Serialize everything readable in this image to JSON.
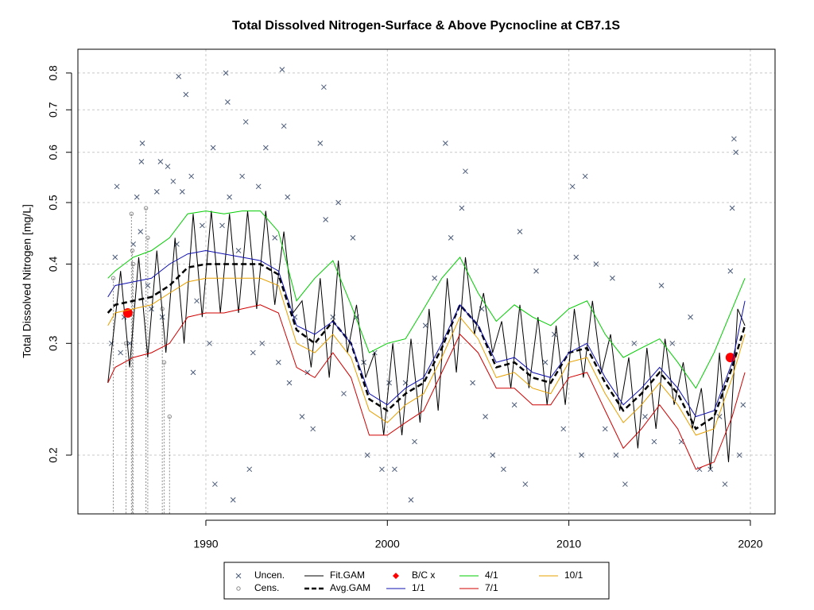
{
  "chart_data": {
    "type": "line",
    "title": "Total Dissolved Nitrogen-Surface & Above Pycnocline at CB7.1S",
    "y_label": "Total Dissolved Nitrogen [mg/L]",
    "log_y": true,
    "grid": true,
    "xlim": [
      1982.95,
      2021.36
    ],
    "ylim": [
      0.1616,
      0.872
    ],
    "xticks": [
      1990,
      2000,
      2010,
      2020
    ],
    "yticks": [
      0.2,
      0.3,
      0.4,
      0.5,
      0.6,
      0.7,
      0.8
    ],
    "legend": "bottom",
    "x": [
      1984.6,
      1985,
      1986,
      1987,
      1988,
      1989,
      1990,
      1991,
      1992,
      1993,
      1994,
      1995,
      1996,
      1997,
      1998,
      1999,
      2000,
      2001,
      2002,
      2003,
      2004,
      2005,
      2006,
      2007,
      2008,
      2009,
      2010,
      2011,
      2012,
      2013,
      2014,
      2015,
      2016,
      2017,
      2018,
      2019,
      2019.7
    ],
    "series": [
      {
        "name": "Uncen.",
        "color": "#4a5a78",
        "marker": "x",
        "x": [
          1984.8,
          1985.0,
          1985.1,
          1985.3,
          1985.5,
          1985.8,
          1986.0,
          1986.2,
          1986.4,
          1986.5,
          1986.45,
          1986.8,
          1987.0,
          1987.3,
          1987.5,
          1987.6,
          1987.9,
          1988.2,
          1988.4,
          1988.5,
          1988.7,
          1988.9,
          1989.2,
          1989.3,
          1989.5,
          1989.8,
          1990.2,
          1990.4,
          1990.5,
          1990.9,
          1991.1,
          1991.2,
          1991.3,
          1991.5,
          1991.8,
          1992.0,
          1992.2,
          1992.4,
          1992.6,
          1992.9,
          1993.1,
          1993.3,
          1993.8,
          1994.0,
          1994.2,
          1994.3,
          1994.5,
          1994.6,
          1994.9,
          1995.3,
          1995.6,
          1995.9,
          1996.3,
          1996.5,
          1996.6,
          1997.0,
          1997.3,
          1997.6,
          1998.1,
          1998.3,
          1998.7,
          1998.9,
          1999.3,
          1999.7,
          2000.1,
          2000.4,
          2001.0,
          2001.3,
          2001.5,
          2002.1,
          2002.6,
          2003.2,
          2003.5,
          2004.1,
          2004.3,
          2004.7,
          2005.2,
          2005.4,
          2005.8,
          2006.4,
          2007.0,
          2007.3,
          2007.6,
          2008.2,
          2008.7,
          2009.2,
          2009.7,
          2010.2,
          2010.4,
          2010.7,
          2010.9,
          2011.5,
          2012.0,
          2012.4,
          2012.6,
          2013.1,
          2013.6,
          2014.2,
          2014.7,
          2015.1,
          2015.7,
          2016.2,
          2016.7,
          2017.2,
          2017.8,
          2018.3,
          2018.6,
          2018.9,
          2019.1,
          2019.2,
          2019.0,
          2019.4,
          2019.6
        ],
        "values": [
          0.3,
          0.41,
          0.53,
          0.29,
          0.33,
          0.3,
          0.43,
          0.51,
          0.45,
          0.62,
          0.58,
          0.37,
          0.34,
          0.52,
          0.58,
          0.33,
          0.57,
          0.54,
          0.43,
          0.79,
          0.52,
          0.74,
          0.55,
          0.27,
          0.35,
          0.46,
          0.3,
          0.61,
          0.18,
          0.46,
          0.8,
          0.72,
          0.51,
          0.17,
          0.42,
          0.55,
          0.67,
          0.19,
          0.29,
          0.53,
          0.3,
          0.61,
          0.44,
          0.28,
          0.81,
          0.66,
          0.51,
          0.26,
          0.33,
          0.23,
          0.27,
          0.22,
          0.62,
          0.76,
          0.47,
          0.33,
          0.5,
          0.25,
          0.44,
          0.33,
          0.28,
          0.2,
          0.29,
          0.19,
          0.26,
          0.19,
          0.26,
          0.17,
          0.21,
          0.32,
          0.38,
          0.62,
          0.44,
          0.49,
          0.56,
          0.26,
          0.34,
          0.23,
          0.2,
          0.19,
          0.24,
          0.45,
          0.18,
          0.39,
          0.28,
          0.31,
          0.22,
          0.53,
          0.41,
          0.2,
          0.55,
          0.4,
          0.22,
          0.38,
          0.2,
          0.18,
          0.3,
          0.23,
          0.21,
          0.37,
          0.3,
          0.21,
          0.33,
          0.19,
          0.19,
          0.23,
          0.18,
          0.39,
          0.63,
          0.6,
          0.49,
          0.2,
          0.24
        ]
      },
      {
        "name": "Cens.",
        "color": "#8a8a8a",
        "marker": "circle",
        "x": [
          1984.9,
          1985.6,
          1985.9,
          1985.95,
          1986.0,
          1986.7,
          1986.8,
          1987.6,
          1987.7,
          1988.0
        ],
        "values": [
          0.38,
          0.3,
          0.48,
          0.42,
          0.4,
          0.49,
          0.44,
          0.34,
          0.28,
          0.23
        ]
      },
      {
        "name": "Fit.GAM",
        "color": "#000000",
        "marker": "line",
        "x": [
          1984.6,
          1985.3,
          1985.8,
          1986.3,
          1986.8,
          1987.3,
          1987.8,
          1988.3,
          1988.8,
          1989.3,
          1989.8,
          1990.3,
          1990.8,
          1991.3,
          1991.8,
          1992.3,
          1992.8,
          1993.3,
          1993.8,
          1994.3,
          1994.8,
          1995.3,
          1995.8,
          1996.3,
          1996.8,
          1997.3,
          1997.8,
          1998.3,
          1998.8,
          1999.3,
          1999.8,
          2000.3,
          2000.8,
          2001.3,
          2001.8,
          2002.3,
          2002.8,
          2003.3,
          2003.8,
          2004.3,
          2004.8,
          2005.3,
          2005.8,
          2006.3,
          2006.8,
          2007.3,
          2007.8,
          2008.3,
          2008.8,
          2009.3,
          2009.8,
          2010.3,
          2010.8,
          2011.3,
          2011.8,
          2012.3,
          2012.8,
          2013.3,
          2013.8,
          2014.3,
          2014.8,
          2015.3,
          2015.8,
          2016.3,
          2016.8,
          2017.3,
          2017.8,
          2018.3,
          2018.8,
          2019.3,
          2019.7
        ],
        "values": [
          0.26,
          0.39,
          0.275,
          0.41,
          0.285,
          0.42,
          0.29,
          0.44,
          0.3,
          0.48,
          0.33,
          0.485,
          0.335,
          0.48,
          0.335,
          0.485,
          0.34,
          0.485,
          0.345,
          0.45,
          0.335,
          0.35,
          0.275,
          0.38,
          0.265,
          0.405,
          0.29,
          0.345,
          0.265,
          0.29,
          0.215,
          0.3,
          0.215,
          0.305,
          0.225,
          0.34,
          0.235,
          0.38,
          0.27,
          0.41,
          0.31,
          0.36,
          0.29,
          0.325,
          0.255,
          0.345,
          0.255,
          0.33,
          0.24,
          0.32,
          0.24,
          0.34,
          0.265,
          0.35,
          0.27,
          0.31,
          0.235,
          0.285,
          0.205,
          0.295,
          0.22,
          0.305,
          0.24,
          0.28,
          0.22,
          0.255,
          0.19,
          0.29,
          0.195,
          0.34,
          0.32
        ]
      },
      {
        "name": "Avg.GAM",
        "color": "#000000",
        "marker": "dashed",
        "values": [
          0.335,
          0.345,
          0.35,
          0.355,
          0.37,
          0.395,
          0.4,
          0.4,
          0.4,
          0.4,
          0.385,
          0.315,
          0.3,
          0.325,
          0.3,
          0.245,
          0.235,
          0.25,
          0.26,
          0.295,
          0.345,
          0.32,
          0.275,
          0.28,
          0.265,
          0.26,
          0.29,
          0.295,
          0.26,
          0.235,
          0.25,
          0.27,
          0.25,
          0.22,
          0.23,
          0.275,
          0.32
        ]
      },
      {
        "name": "B/C x",
        "color": "#ff0000",
        "marker": "dot",
        "x": [
          1985.7,
          2018.9
        ],
        "values": [
          0.335,
          0.285
        ]
      },
      {
        "name": "1/1",
        "color": "#1010b0",
        "marker": "line",
        "values": [
          0.355,
          0.37,
          0.375,
          0.38,
          0.4,
          0.415,
          0.42,
          0.415,
          0.41,
          0.405,
          0.39,
          0.32,
          0.31,
          0.325,
          0.3,
          0.25,
          0.24,
          0.255,
          0.265,
          0.3,
          0.345,
          0.32,
          0.28,
          0.285,
          0.27,
          0.265,
          0.29,
          0.3,
          0.265,
          0.24,
          0.255,
          0.275,
          0.255,
          0.23,
          0.235,
          0.28,
          0.35
        ]
      },
      {
        "name": "4/1",
        "color": "#00cc00",
        "marker": "line",
        "values": [
          0.38,
          0.39,
          0.41,
          0.42,
          0.44,
          0.48,
          0.485,
          0.48,
          0.485,
          0.485,
          0.45,
          0.35,
          0.38,
          0.405,
          0.345,
          0.29,
          0.3,
          0.305,
          0.34,
          0.38,
          0.41,
          0.36,
          0.325,
          0.345,
          0.33,
          0.32,
          0.34,
          0.35,
          0.31,
          0.285,
          0.295,
          0.305,
          0.28,
          0.255,
          0.29,
          0.34,
          0.38
        ]
      },
      {
        "name": "7/1",
        "color": "#d00000",
        "marker": "line",
        "values": [
          0.26,
          0.275,
          0.285,
          0.29,
          0.3,
          0.33,
          0.335,
          0.335,
          0.34,
          0.345,
          0.335,
          0.275,
          0.265,
          0.29,
          0.265,
          0.215,
          0.215,
          0.225,
          0.235,
          0.27,
          0.31,
          0.29,
          0.255,
          0.255,
          0.24,
          0.24,
          0.265,
          0.27,
          0.235,
          0.205,
          0.22,
          0.24,
          0.22,
          0.19,
          0.195,
          0.23,
          0.27
        ]
      },
      {
        "name": "10/1",
        "color": "#e6a000",
        "marker": "line",
        "values": [
          0.32,
          0.335,
          0.34,
          0.345,
          0.36,
          0.375,
          0.38,
          0.38,
          0.38,
          0.38,
          0.37,
          0.3,
          0.29,
          0.31,
          0.285,
          0.235,
          0.225,
          0.24,
          0.25,
          0.285,
          0.33,
          0.305,
          0.265,
          0.27,
          0.255,
          0.25,
          0.28,
          0.285,
          0.25,
          0.225,
          0.24,
          0.26,
          0.24,
          0.215,
          0.22,
          0.265,
          0.31
        ]
      }
    ]
  }
}
